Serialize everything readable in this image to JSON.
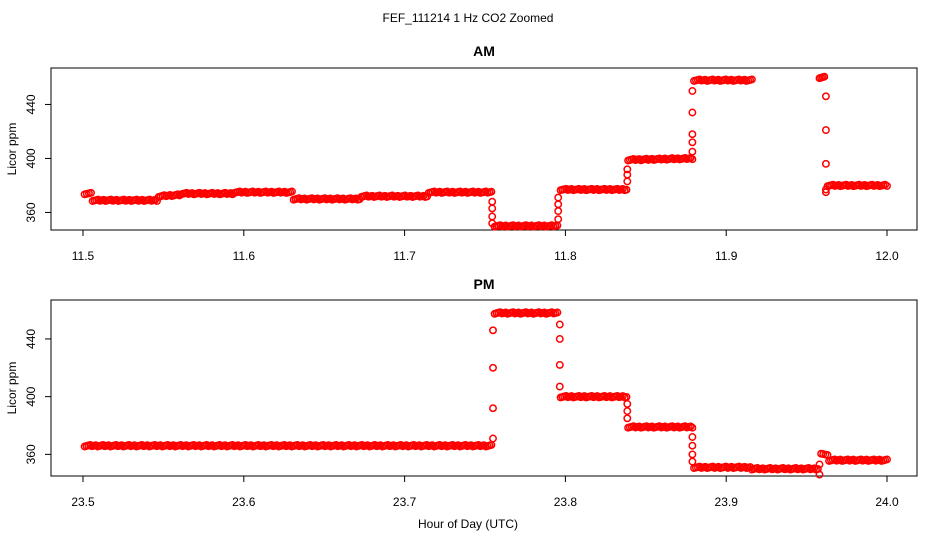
{
  "figure": {
    "title": "FEF_111214  1 Hz CO2 Zoomed",
    "xlabel": "Hour of Day (UTC)"
  },
  "chart_data": [
    {
      "type": "scatter",
      "title": "AM",
      "ylabel": "Licor ppm",
      "xlabel": "Hour of Day (UTC)",
      "xlim": [
        11.5,
        12.0
      ],
      "ylim": [
        347,
        467
      ],
      "xticks": [
        "11.5",
        "11.6",
        "11.7",
        "11.8",
        "11.9",
        "12.0"
      ],
      "xtick_values": [
        11.5,
        11.6,
        11.7,
        11.8,
        11.9,
        12.0
      ],
      "yticks": [
        "360",
        "400",
        "440"
      ],
      "ytick_values": [
        360,
        400,
        440
      ],
      "marker": "open-circle",
      "color": "#ff0000",
      "segments": [
        {
          "x0": 11.501,
          "x1": 11.505,
          "y0": 374,
          "y1": 374
        },
        {
          "x0": 11.506,
          "x1": 11.546,
          "y0": 369,
          "y1": 369
        },
        {
          "x0": 11.547,
          "x1": 11.56,
          "y0": 372,
          "y1": 373
        },
        {
          "x0": 11.561,
          "x1": 11.593,
          "y0": 374,
          "y1": 374
        },
        {
          "x0": 11.594,
          "x1": 11.63,
          "y0": 375,
          "y1": 375
        },
        {
          "x0": 11.631,
          "x1": 11.672,
          "y0": 370,
          "y1": 370
        },
        {
          "x0": 11.673,
          "x1": 11.714,
          "y0": 372,
          "y1": 372
        },
        {
          "x0": 11.715,
          "x1": 11.754,
          "y0": 375,
          "y1": 375
        },
        {
          "x0": 11.756,
          "x1": 11.795,
          "y0": 350,
          "y1": 350
        },
        {
          "x0": 11.797,
          "x1": 11.838,
          "y0": 377,
          "y1": 377
        },
        {
          "x0": 11.839,
          "x1": 11.879,
          "y0": 399,
          "y1": 400
        },
        {
          "x0": 11.88,
          "x1": 11.916,
          "y0": 458,
          "y1": 458
        },
        {
          "x0": 11.958,
          "x1": 11.961,
          "y0": 460,
          "y1": 460
        },
        {
          "x0": 11.963,
          "x1": 12.0,
          "y0": 380,
          "y1": 380
        }
      ],
      "transitions": [
        {
          "x": 11.7545,
          "y": [
            368,
            363,
            357,
            352
          ]
        },
        {
          "x": 11.7955,
          "y": [
            355,
            361,
            366,
            371
          ]
        },
        {
          "x": 11.8385,
          "y": [
            383,
            388,
            392
          ]
        },
        {
          "x": 11.879,
          "y": [
            405,
            412,
            418,
            434,
            450
          ]
        },
        {
          "x": 11.962,
          "y": [
            446,
            421,
            396,
            375,
            377
          ]
        }
      ]
    },
    {
      "type": "scatter",
      "title": "PM",
      "ylabel": "Licor ppm",
      "xlabel": "Hour of Day (UTC)",
      "xlim": [
        23.5,
        24.0
      ],
      "ylim": [
        345,
        467
      ],
      "xticks": [
        "23.5",
        "23.6",
        "23.7",
        "23.8",
        "23.9",
        "24.0"
      ],
      "xtick_values": [
        23.5,
        23.6,
        23.7,
        23.8,
        23.9,
        24.0
      ],
      "yticks": [
        "360",
        "400",
        "440"
      ],
      "ytick_values": [
        360,
        400,
        440
      ],
      "marker": "open-circle",
      "color": "#ff0000",
      "segments": [
        {
          "x0": 23.501,
          "x1": 23.754,
          "y0": 366,
          "y1": 366
        },
        {
          "x0": 23.756,
          "x1": 23.795,
          "y0": 458,
          "y1": 458
        },
        {
          "x0": 23.797,
          "x1": 23.838,
          "y0": 400,
          "y1": 400
        },
        {
          "x0": 23.839,
          "x1": 23.879,
          "y0": 379,
          "y1": 379
        },
        {
          "x0": 23.88,
          "x1": 23.915,
          "y0": 351,
          "y1": 351
        },
        {
          "x0": 23.916,
          "x1": 23.957,
          "y0": 350,
          "y1": 350
        },
        {
          "x0": 23.959,
          "x1": 23.963,
          "y0": 361,
          "y1": 359
        },
        {
          "x0": 23.964,
          "x1": 24.0,
          "y0": 356,
          "y1": 356
        }
      ],
      "transitions": [
        {
          "x": 23.755,
          "y": [
            371,
            392,
            420,
            446
          ]
        },
        {
          "x": 23.7965,
          "y": [
            450,
            440,
            422,
            407
          ]
        },
        {
          "x": 23.8385,
          "y": [
            395,
            390,
            385
          ]
        },
        {
          "x": 23.879,
          "y": [
            372,
            366,
            360,
            355
          ]
        },
        {
          "x": 23.958,
          "y": [
            346,
            353
          ]
        }
      ]
    }
  ]
}
